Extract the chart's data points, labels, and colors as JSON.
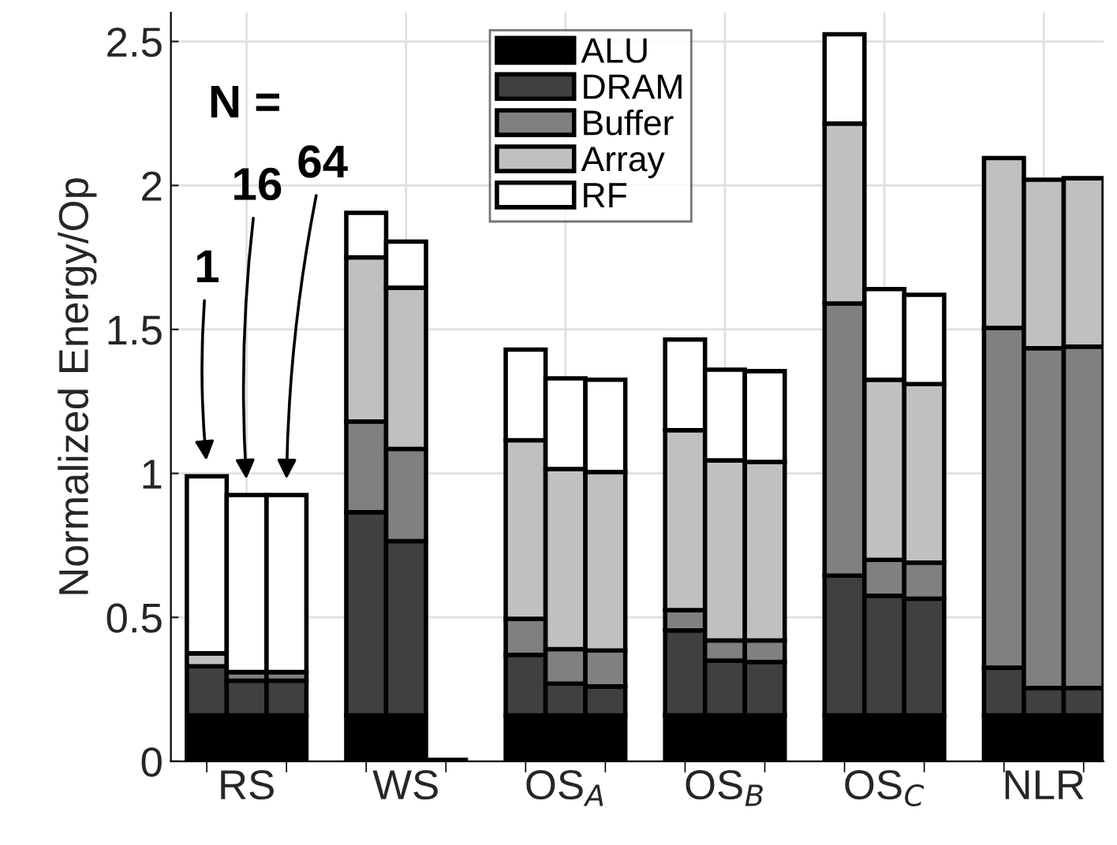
{
  "chart_data": {
    "type": "bar",
    "stacked": true,
    "ylabel": "Normalized Energy/Op",
    "categories": [
      null,
      "RS",
      null,
      null,
      "WS",
      null,
      null,
      "OS$_{A}$",
      null,
      null,
      "OS$_{B}$",
      null,
      null,
      "OS$_{C}$",
      null,
      null,
      "NLR",
      null
    ],
    "series": [
      {
        "name": "ALU",
        "color": "#000000",
        "values": [
          0.16,
          0.16,
          0.16,
          0.16,
          0.16,
          0.005,
          0.16,
          0.16,
          0.16,
          0.16,
          0.16,
          0.16,
          0.16,
          0.16,
          0.16,
          0.16,
          0.16,
          0.16
        ]
      },
      {
        "name": "DRAM",
        "color": "#404040",
        "values": [
          0.17,
          0.12,
          0.12,
          0.705,
          0.605,
          0,
          0.21,
          0.11,
          0.1,
          0.295,
          0.19,
          0.185,
          0.485,
          0.415,
          0.405,
          0.165,
          0.095,
          0.095
        ]
      },
      {
        "name": "Buffer",
        "color": "#808080",
        "values": [
          null,
          0.03,
          0.03,
          0.315,
          0.32,
          0,
          0.125,
          0.12,
          0.125,
          0.07,
          0.07,
          0.075,
          0.945,
          0.125,
          0.125,
          1.18,
          1.18,
          1.185
        ]
      },
      {
        "name": "Array",
        "color": "#c0c0c0",
        "values": [
          0.045,
          null,
          null,
          0.57,
          0.56,
          0,
          0.62,
          0.625,
          0.62,
          0.625,
          0.625,
          0.62,
          0.625,
          0.625,
          0.62,
          0.59,
          0.585,
          0.585
        ]
      },
      {
        "name": "RF",
        "color": "#ffffff",
        "values": [
          0.615,
          0.615,
          0.615,
          0.155,
          0.16,
          0,
          0.315,
          0.315,
          0.32,
          0.315,
          0.315,
          0.315,
          0.31,
          0.315,
          0.31,
          0,
          0,
          0
        ]
      }
    ],
    "ylim": [
      0,
      2.6
    ],
    "yticks": [
      0,
      0.5,
      1,
      1.5,
      2,
      2.5
    ],
    "grid": true,
    "legend": "top",
    "annotations": [
      "N =",
      "1",
      "16",
      "64"
    ]
  }
}
